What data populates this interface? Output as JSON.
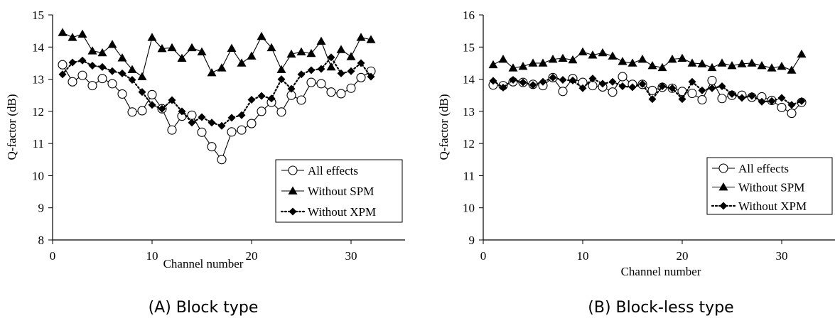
{
  "chart_data": [
    {
      "type": "line",
      "caption": "(A) Block type",
      "xlabel": "Channel number",
      "ylabel": "Q-factor (dB)",
      "xlim": [
        0,
        35
      ],
      "ylim": [
        8,
        15
      ],
      "xticks": [
        0,
        10,
        20,
        30
      ],
      "yticks": [
        8,
        9,
        10,
        11,
        12,
        13,
        14,
        15
      ],
      "grid": false,
      "legend_position": "bottom-right",
      "x": [
        1,
        2,
        3,
        4,
        5,
        6,
        7,
        8,
        9,
        10,
        11,
        12,
        13,
        14,
        15,
        16,
        17,
        18,
        19,
        20,
        21,
        22,
        23,
        24,
        25,
        26,
        27,
        28,
        29,
        30,
        31,
        32
      ],
      "series": [
        {
          "name": "All effects",
          "marker": "circle-open",
          "line": "solid",
          "values": [
            13.45,
            12.92,
            13.12,
            12.8,
            13.02,
            12.86,
            12.54,
            11.98,
            12.02,
            12.52,
            12.08,
            11.42,
            11.85,
            11.88,
            11.35,
            10.9,
            10.5,
            11.36,
            11.42,
            11.62,
            12.0,
            12.28,
            11.98,
            12.5,
            12.35,
            12.9,
            12.86,
            12.6,
            12.55,
            12.72,
            13.05,
            13.25
          ]
        },
        {
          "name": "Without SPM",
          "marker": "triangle-filled",
          "line": "solid",
          "values": [
            14.45,
            14.3,
            14.4,
            13.88,
            13.82,
            14.08,
            13.66,
            13.3,
            13.08,
            14.3,
            13.95,
            13.98,
            13.65,
            13.98,
            13.85,
            13.2,
            13.35,
            13.96,
            13.5,
            13.72,
            14.33,
            13.98,
            13.3,
            13.78,
            13.85,
            13.8,
            14.18,
            13.38,
            13.92,
            13.7,
            14.3,
            14.23
          ]
        },
        {
          "name": "Without XPM",
          "marker": "diamond-filled",
          "line": "dotted",
          "values": [
            13.15,
            13.52,
            13.58,
            13.42,
            13.38,
            13.25,
            13.18,
            12.98,
            12.6,
            12.2,
            12.08,
            12.35,
            12.0,
            11.65,
            11.82,
            11.65,
            11.55,
            11.8,
            11.88,
            12.36,
            12.48,
            12.4,
            13.0,
            12.7,
            13.15,
            13.28,
            13.32,
            13.68,
            13.18,
            13.25,
            13.5,
            13.08
          ]
        }
      ]
    },
    {
      "type": "line",
      "caption": "(B) Block-less type",
      "xlabel": "Channel number",
      "ylabel": "Q-factor (dB)",
      "xlim": [
        0,
        35
      ],
      "ylim": [
        9,
        16
      ],
      "xticks": [
        0,
        10,
        20,
        30
      ],
      "yticks": [
        9,
        10,
        11,
        12,
        13,
        14,
        15,
        16
      ],
      "grid": false,
      "legend_position": "bottom-right",
      "x": [
        1,
        2,
        3,
        4,
        5,
        6,
        7,
        8,
        9,
        10,
        11,
        12,
        13,
        14,
        15,
        16,
        17,
        18,
        19,
        20,
        21,
        22,
        23,
        24,
        25,
        26,
        27,
        28,
        29,
        30,
        31,
        32
      ],
      "series": [
        {
          "name": "All effects",
          "marker": "circle-open",
          "line": "solid",
          "values": [
            13.82,
            13.8,
            13.92,
            13.9,
            13.84,
            13.8,
            14.05,
            13.62,
            14.02,
            13.9,
            13.8,
            13.76,
            13.6,
            14.08,
            13.84,
            13.84,
            13.65,
            13.75,
            13.72,
            13.62,
            13.56,
            13.36,
            13.96,
            13.4,
            13.5,
            13.5,
            13.44,
            13.45,
            13.34,
            13.12,
            12.94,
            13.28
          ]
        },
        {
          "name": "Without SPM",
          "marker": "triangle-filled",
          "line": "solid",
          "values": [
            14.45,
            14.62,
            14.35,
            14.4,
            14.5,
            14.5,
            14.62,
            14.65,
            14.6,
            14.85,
            14.75,
            14.82,
            14.72,
            14.55,
            14.5,
            14.62,
            14.42,
            14.36,
            14.62,
            14.65,
            14.5,
            14.48,
            14.36,
            14.5,
            14.42,
            14.48,
            14.5,
            14.42,
            14.35,
            14.4,
            14.28,
            14.78
          ]
        },
        {
          "name": "Without XPM",
          "marker": "diamond-filled",
          "line": "dotted",
          "values": [
            13.95,
            13.74,
            13.98,
            13.9,
            13.82,
            13.92,
            14.05,
            13.98,
            13.96,
            13.72,
            14.02,
            13.86,
            13.92,
            13.78,
            13.75,
            13.85,
            13.38,
            13.78,
            13.72,
            13.38,
            13.92,
            13.65,
            13.72,
            13.78,
            13.54,
            13.42,
            13.48,
            13.3,
            13.32,
            13.42,
            13.2,
            13.32
          ]
        }
      ]
    }
  ]
}
